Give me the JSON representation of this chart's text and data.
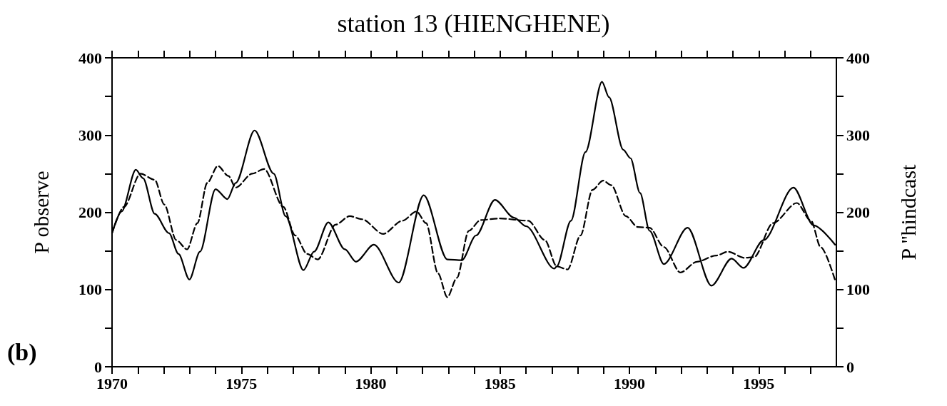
{
  "chart_data": {
    "type": "line",
    "title": "station 13 (HIENGHENE)",
    "ylabel": "P observe",
    "y2label": "P ''hindcast",
    "annotations": [
      "(b)"
    ],
    "xlim": [
      1970,
      1998
    ],
    "xticks": [
      1970,
      {
        "value": 1971,
        "label": null
      },
      {
        "value": 1972,
        "label": null
      },
      {
        "value": 1973,
        "label": null
      },
      {
        "value": 1974,
        "label": null
      },
      1975,
      {
        "value": 1976,
        "label": null
      },
      {
        "value": 1977,
        "label": null
      },
      {
        "value": 1978,
        "label": null
      },
      {
        "value": 1979,
        "label": null
      },
      1980,
      {
        "value": 1981,
        "label": null
      },
      {
        "value": 1982,
        "label": null
      },
      {
        "value": 1983,
        "label": null
      },
      {
        "value": 1984,
        "label": null
      },
      1985,
      {
        "value": 1986,
        "label": null
      },
      {
        "value": 1987,
        "label": null
      },
      {
        "value": 1988,
        "label": null
      },
      {
        "value": 1989,
        "label": null
      },
      1990,
      {
        "value": 1991,
        "label": null
      },
      {
        "value": 1992,
        "label": null
      },
      {
        "value": 1993,
        "label": null
      },
      {
        "value": 1994,
        "label": null
      },
      1995,
      {
        "value": 1996,
        "label": null
      },
      {
        "value": 1997,
        "label": null
      }
    ],
    "ylim": [
      0,
      400
    ],
    "yticks": [
      0,
      {
        "value": 50,
        "label": null
      },
      100,
      {
        "value": 150,
        "label": null
      },
      200,
      {
        "value": 250,
        "label": null
      },
      300,
      {
        "value": 350,
        "label": null
      },
      400
    ],
    "y2lim": [
      0,
      400
    ],
    "y2ticks": [
      0,
      {
        "value": 50,
        "label": null
      },
      100,
      {
        "value": 150,
        "label": null
      },
      200,
      {
        "value": 250,
        "label": null
      },
      300,
      {
        "value": 350,
        "label": null
      },
      400
    ],
    "grid": false,
    "marker": "none",
    "series": [
      {
        "color": "#000000",
        "line_style": "solid",
        "x": [
          1970.0,
          1970.37,
          1970.92,
          1971.2,
          1971.65,
          1972.2,
          1972.57,
          1972.99,
          1973.4,
          1974.0,
          1974.46,
          1974.78,
          1975.51,
          1976.25,
          1976.71,
          1977.4,
          1977.81,
          1978.36,
          1979.0,
          1979.43,
          1980.12,
          1981.08,
          1982.05,
          1982.96,
          1983.52,
          1984.07,
          1984.8,
          1985.54,
          1986.0,
          1987.1,
          1987.19,
          1987.74,
          1988.3,
          1988.94,
          1989.21,
          1989.76,
          1990.04,
          1990.41,
          1990.78,
          1991.33,
          1992.25,
          1993.17,
          1993.95,
          1994.41,
          1995.19,
          1996.34,
          1997.12,
          1997.95
        ],
        "values": [
          173,
          201,
          255,
          244,
          198,
          173,
          146,
          113,
          149,
          230,
          217,
          238,
          306,
          250,
          195,
          125,
          149,
          187,
          152,
          136,
          158,
          109,
          222,
          139,
          138,
          170,
          216,
          193,
          182,
          127,
          130,
          189,
          278,
          369,
          349,
          281,
          270,
          225,
          176,
          133,
          180,
          105,
          140,
          128,
          164,
          232,
          183,
          158
        ]
      },
      {
        "color": "#000000",
        "line_style": "dashed",
        "x": [
          1970.0,
          1970.46,
          1971.1,
          1971.65,
          1972.02,
          1972.48,
          1972.9,
          1973.3,
          1973.68,
          1974.09,
          1974.5,
          1974.78,
          1975.42,
          1975.88,
          1976.62,
          1977.08,
          1977.54,
          1977.95,
          1978.64,
          1979.19,
          1979.66,
          1980.48,
          1981.22,
          1981.77,
          1982.14,
          1982.6,
          1982.96,
          1983.33,
          1983.79,
          1984.25,
          1984.99,
          1986.09,
          1986.73,
          1987.19,
          1987.61,
          1988.11,
          1988.57,
          1988.98,
          1989.3,
          1989.86,
          1990.32,
          1990.78,
          1991.33,
          1991.97,
          1992.61,
          1993.35,
          1993.81,
          1994.45,
          1994.82,
          1995.55,
          1996.47,
          1997.02,
          1997.39,
          1997.95
        ],
        "values": [
          173,
          207,
          250,
          242,
          210,
          164,
          152,
          186,
          238,
          260,
          247,
          232,
          250,
          256,
          207,
          170,
          146,
          139,
          184,
          195,
          191,
          172,
          189,
          201,
          186,
          121,
          90,
          115,
          176,
          190,
          192,
          189,
          164,
          130,
          126,
          170,
          229,
          241,
          235,
          195,
          181,
          180,
          155,
          122,
          136,
          144,
          149,
          141,
          142,
          186,
          212,
          189,
          155,
          112
        ]
      }
    ]
  }
}
